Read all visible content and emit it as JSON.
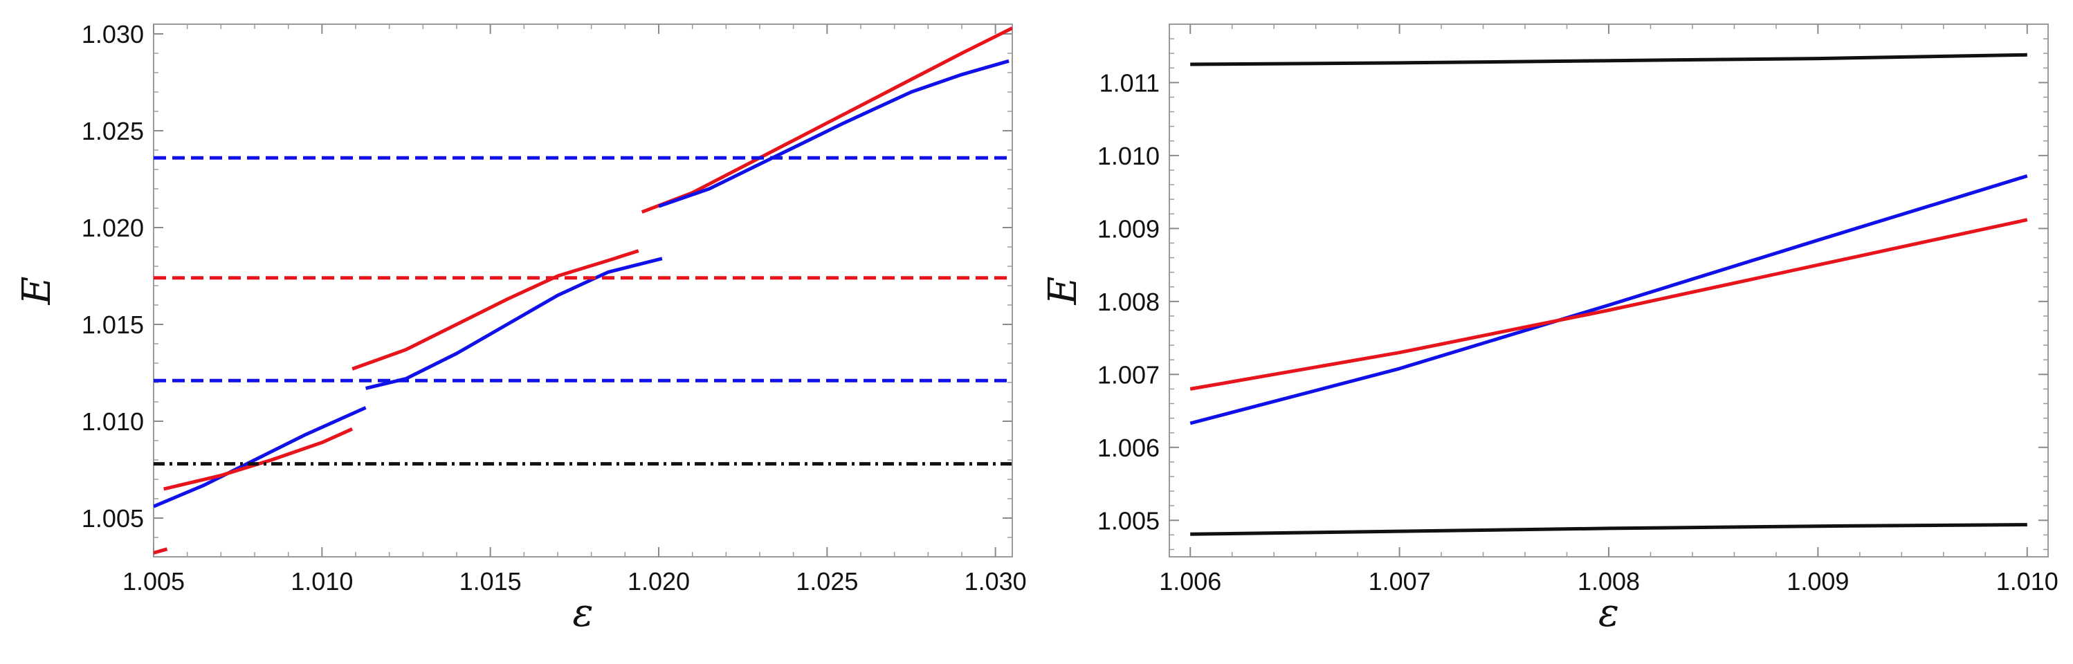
{
  "chart_data": [
    {
      "type": "line",
      "title": "",
      "xlabel": "ε",
      "ylabel": "E",
      "xlim": [
        1.005,
        1.0305
      ],
      "ylim": [
        1.003,
        1.0305
      ],
      "xticks": [
        "1.005",
        "1.010",
        "1.015",
        "1.020",
        "1.025",
        "1.030"
      ],
      "yticks": [
        "1.005",
        "1.010",
        "1.015",
        "1.020",
        "1.025",
        "1.030"
      ],
      "grid": false,
      "legend": "none",
      "series": [
        {
          "color": "#e8141c",
          "style": "solid",
          "points": [
            [
              1.005,
              1.0032
            ],
            [
              1.0054,
              1.0034
            ]
          ]
        },
        {
          "color": "#1010e8",
          "style": "solid",
          "points": [
            [
              1.005,
              1.0056
            ],
            [
              1.0065,
              1.0067
            ],
            [
              1.008,
              1.008
            ],
            [
              1.0095,
              1.0093
            ],
            [
              1.0113,
              1.0107
            ]
          ]
        },
        {
          "color": "#e8141c",
          "style": "solid",
          "points": [
            [
              1.0053,
              1.0065
            ],
            [
              1.007,
              1.0072
            ],
            [
              1.0085,
              1.008
            ],
            [
              1.01,
              1.0089
            ],
            [
              1.0109,
              1.0096
            ]
          ]
        },
        {
          "color": "#e8141c",
          "style": "solid",
          "points": [
            [
              1.0109,
              1.0127
            ],
            [
              1.0125,
              1.0137
            ],
            [
              1.014,
              1.015
            ],
            [
              1.0155,
              1.0163
            ],
            [
              1.017,
              1.0175
            ],
            [
              1.0185,
              1.0183
            ],
            [
              1.0194,
              1.0188
            ]
          ]
        },
        {
          "color": "#1010e8",
          "style": "solid",
          "points": [
            [
              1.0113,
              1.0117
            ],
            [
              1.0125,
              1.0122
            ],
            [
              1.014,
              1.0135
            ],
            [
              1.0155,
              1.015
            ],
            [
              1.017,
              1.0165
            ],
            [
              1.0185,
              1.0177
            ],
            [
              1.0201,
              1.0184
            ]
          ]
        },
        {
          "color": "#e8141c",
          "style": "solid",
          "points": [
            [
              1.0195,
              1.0208
            ],
            [
              1.021,
              1.0218
            ],
            [
              1.023,
              1.0236
            ],
            [
              1.025,
              1.0254
            ],
            [
              1.027,
              1.0272
            ],
            [
              1.029,
              1.029
            ],
            [
              1.0305,
              1.0303
            ]
          ]
        },
        {
          "color": "#1010e8",
          "style": "solid",
          "points": [
            [
              1.02,
              1.0211
            ],
            [
              1.0215,
              1.022
            ],
            [
              1.0235,
              1.0237
            ],
            [
              1.0255,
              1.0254
            ],
            [
              1.0275,
              1.027
            ],
            [
              1.029,
              1.0279
            ],
            [
              1.0304,
              1.0286
            ]
          ]
        },
        {
          "color": "#1010e8",
          "style": "dashed",
          "points": [
            [
              1.005,
              1.0236
            ],
            [
              1.0305,
              1.0236
            ]
          ]
        },
        {
          "color": "#e8141c",
          "style": "dashed",
          "points": [
            [
              1.005,
              1.0174
            ],
            [
              1.0305,
              1.0174
            ]
          ]
        },
        {
          "color": "#1010e8",
          "style": "dashed",
          "points": [
            [
              1.005,
              1.0121
            ],
            [
              1.0305,
              1.0121
            ]
          ]
        },
        {
          "color": "#111111",
          "style": "dashdot",
          "points": [
            [
              1.005,
              1.0078
            ],
            [
              1.0305,
              1.0078
            ]
          ]
        }
      ]
    },
    {
      "type": "line",
      "title": "",
      "xlabel": "ε",
      "ylabel": "E",
      "xlim": [
        1.0059,
        1.0101
      ],
      "ylim": [
        1.0045,
        1.0118
      ],
      "xticks": [
        "1.006",
        "1.007",
        "1.008",
        "1.009",
        "1.010"
      ],
      "yticks": [
        "1.005",
        "1.006",
        "1.007",
        "1.008",
        "1.009",
        "1.010",
        "1.011"
      ],
      "grid": false,
      "legend": "none",
      "series": [
        {
          "color": "#111111",
          "style": "solid",
          "points": [
            [
              1.006,
              1.01125
            ],
            [
              1.007,
              1.01127
            ],
            [
              1.008,
              1.0113
            ],
            [
              1.009,
              1.01133
            ],
            [
              1.01,
              1.01138
            ]
          ]
        },
        {
          "color": "#1010e8",
          "style": "solid",
          "points": [
            [
              1.006,
              1.00633
            ],
            [
              1.007,
              1.00708
            ],
            [
              1.008,
              1.00795
            ],
            [
              1.009,
              1.00884
            ],
            [
              1.01,
              1.00972
            ]
          ]
        },
        {
          "color": "#e8141c",
          "style": "solid",
          "points": [
            [
              1.006,
              1.0068
            ],
            [
              1.007,
              1.0073
            ],
            [
              1.008,
              1.00788
            ],
            [
              1.009,
              1.0085
            ],
            [
              1.01,
              1.00912
            ]
          ]
        },
        {
          "color": "#111111",
          "style": "solid",
          "points": [
            [
              1.006,
              1.00481
            ],
            [
              1.007,
              1.00485
            ],
            [
              1.008,
              1.00489
            ],
            [
              1.009,
              1.00492
            ],
            [
              1.01,
              1.00494
            ]
          ]
        }
      ]
    }
  ]
}
